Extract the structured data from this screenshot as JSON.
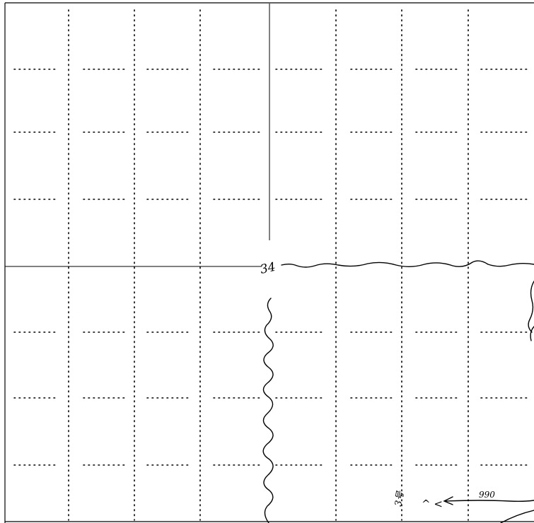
{
  "colors": {
    "background": "#ffffff",
    "ink": "#000000",
    "grid": "#000000",
    "frame": "#000000"
  },
  "annotations": {
    "corner_mark": "34",
    "distance_label": "990",
    "note_vertical": "3号",
    "note_marks": "^ <"
  },
  "icons": {
    "arrow": "left-arrow-icon"
  }
}
